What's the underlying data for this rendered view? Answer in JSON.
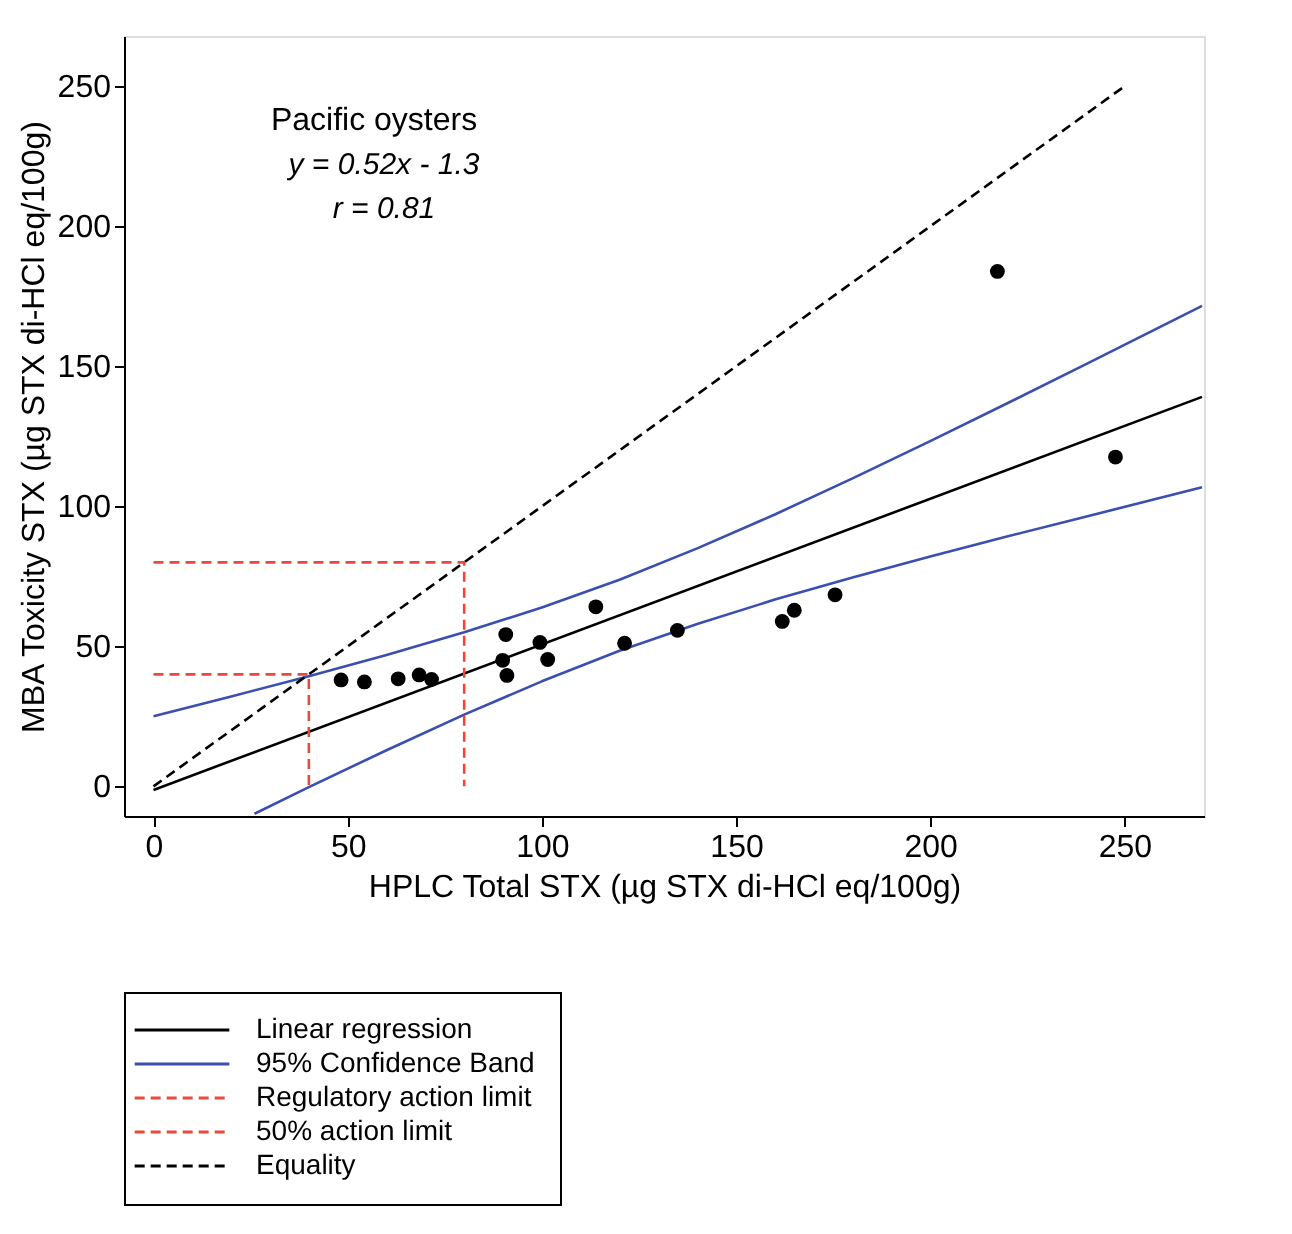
{
  "chart_data": {
    "type": "scatter",
    "xlabel": "HPLC Total STX (µg STX di-HCl eq/100g)",
    "ylabel": "MBA Toxicity STX (µg STX di-HCl eq/100g)",
    "annotations": [
      "Pacific oysters",
      "y = 0.52x - 1.3",
      "r = 0.81"
    ],
    "xlim": [
      -7.6,
      270.5
    ],
    "ylim": [
      -10.6,
      268
    ],
    "xticks": [
      0,
      50,
      100,
      150,
      200,
      250
    ],
    "yticks": [
      0,
      50,
      100,
      150,
      200,
      250
    ],
    "grid": false,
    "legend": "bottom",
    "series": [
      {
        "color": "#000000",
        "marker": "circle",
        "x": [
          48.3,
          54.3,
          63,
          68.4,
          71.6,
          89.9,
          90.7,
          91,
          99.5,
          101.5,
          113.9,
          121.3,
          134.9,
          161.9,
          165,
          175.5,
          217.3,
          247.7
        ],
        "values": [
          38,
          37.3,
          38.4,
          39.8,
          38.2,
          45,
          54.2,
          39.6,
          51.4,
          45.3,
          64.1,
          51.1,
          55.7,
          58.9,
          62.9,
          68.4,
          183.9,
          117.6
        ]
      },
      {
        "type": "line",
        "name": "Linear regression",
        "color": "#000000",
        "line_style": "solid",
        "x": [
          0,
          270
        ],
        "values": [
          -1.3,
          139.1
        ]
      },
      {
        "type": "line",
        "name": "95% Confidence Band",
        "color": "#3a4fb0",
        "line_style": "solid",
        "x": [
          0,
          20,
          40,
          60,
          80,
          100,
          120,
          140,
          160,
          180,
          200,
          220,
          240,
          270
        ],
        "values": [
          25,
          32.1,
          39.3,
          46.9,
          55,
          63.9,
          73.8,
          85,
          97.1,
          110,
          123.3,
          136.9,
          150.7,
          171.6
        ]
      },
      {
        "type": "line",
        "color": "#3a4fb0",
        "line_style": "solid",
        "x": [
          26,
          40,
          60,
          80,
          100,
          120,
          140,
          160,
          180,
          200,
          220,
          240,
          270
        ],
        "values": [
          -9.8,
          -0.3,
          12.9,
          25.6,
          37.5,
          48.4,
          58,
          66.7,
          74.6,
          82.1,
          89.3,
          96.3,
          106.8
        ]
      },
      {
        "type": "line",
        "name": "Regulatory action limit",
        "color": "#e8493a",
        "line_style": "dashed",
        "x": [
          0,
          80,
          80
        ],
        "values": [
          80,
          80,
          0
        ]
      },
      {
        "type": "line",
        "name": "50% action limit",
        "color": "#e8493a",
        "line_style": "dashed",
        "x": [
          0,
          40,
          40
        ],
        "values": [
          40,
          40,
          0
        ]
      },
      {
        "type": "line",
        "name": "Equality",
        "color": "#000000",
        "line_style": "dashed",
        "x": [
          0,
          250
        ],
        "values": [
          0,
          250
        ]
      }
    ]
  }
}
